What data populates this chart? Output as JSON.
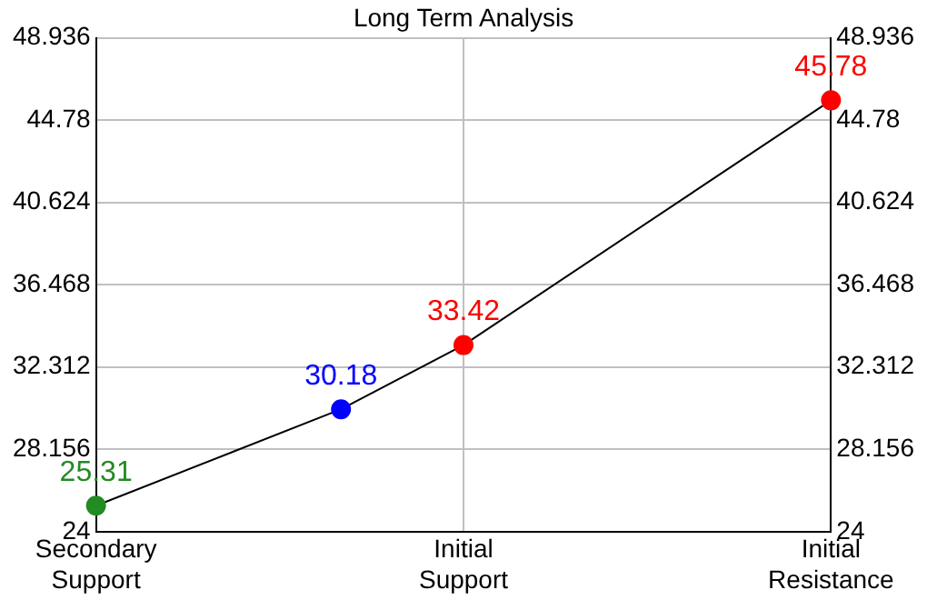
{
  "chart_data": {
    "type": "line",
    "title": "Long Term Analysis",
    "categories": [
      "Secondary Support",
      null,
      null,
      "Initial Support",
      null,
      null,
      "Initial Resistance"
    ],
    "series": [
      {
        "values": [
          25.31,
          null,
          30.18,
          33.42,
          null,
          null,
          45.78
        ],
        "colors": [
          "#228b22",
          null,
          "#0000ff",
          "#ff0000",
          null,
          null,
          "#ff0000"
        ],
        "color": "#000000"
      }
    ],
    "ylim": [
      24,
      48.936
    ],
    "yticks": [
      24,
      28.156,
      32.312,
      36.468,
      40.624,
      44.78,
      48.936
    ],
    "y2lim": [
      24,
      48.936
    ],
    "y2ticks": [
      24,
      28.156,
      32.312,
      36.468,
      40.624,
      44.78,
      48.936
    ],
    "grid": true,
    "marker": "circle",
    "line_style": "solid",
    "data_labels": true,
    "legend": false
  }
}
